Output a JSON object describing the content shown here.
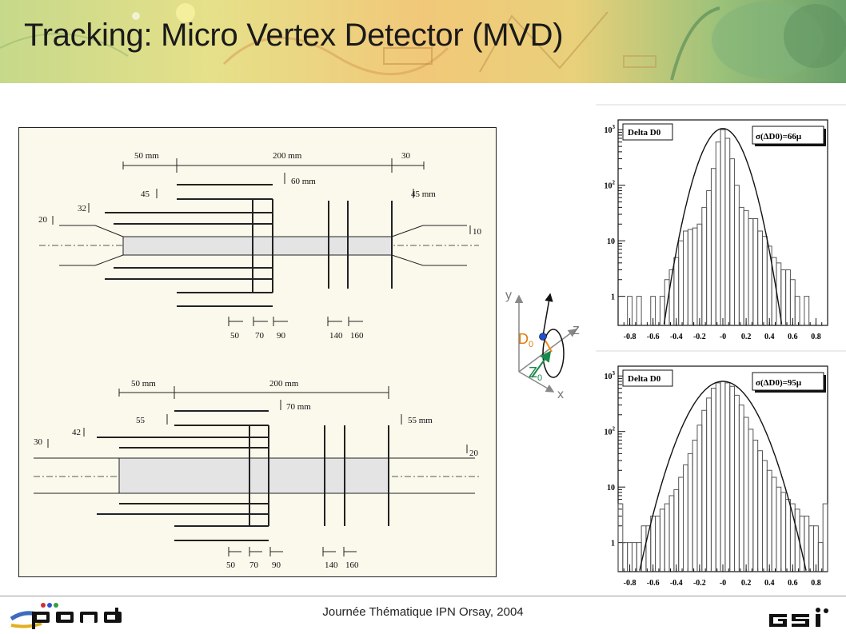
{
  "slide": {
    "title": "Tracking: Micro Vertex Detector (MVD)",
    "footer": "Journée Thématique IPN Orsay, 2004",
    "logo_left": "panda",
    "logo_right": "GSI"
  },
  "drawing_top": {
    "dims": [
      "50 mm",
      "200 mm",
      "30",
      "60 mm",
      "45",
      "45 mm",
      "32",
      "20",
      "10"
    ],
    "disk_labels": [
      "50",
      "70",
      "90",
      "140",
      "160"
    ]
  },
  "drawing_bottom": {
    "dims": [
      "50 mm",
      "200 mm",
      "70 mm",
      "55",
      "55 mm",
      "42",
      "30",
      "20"
    ],
    "disk_labels": [
      "50",
      "70",
      "90",
      "140",
      "160"
    ]
  },
  "coord": {
    "y": "y",
    "z": "z",
    "x": "x",
    "d0": "D",
    "d0_sub": "0",
    "z0": "Z",
    "z0_sub": "0"
  },
  "chart_data": [
    {
      "type": "bar",
      "title": "Delta D0",
      "annotation": "σ(ΔD0)=66μ",
      "y_scale": "log",
      "ylim": [
        0.3,
        1500
      ],
      "y_ticks": [
        "1",
        "10",
        "10²",
        "10³"
      ],
      "x_ticks": [
        "-0.8",
        "-0.6",
        "-0.4",
        "-0.2",
        "-0",
        "0.2",
        "0.4",
        "0.6",
        "0.8"
      ],
      "xlim": [
        -0.9,
        0.9
      ],
      "bin_width": 0.04,
      "x": [
        -0.88,
        -0.84,
        -0.8,
        -0.76,
        -0.72,
        -0.68,
        -0.64,
        -0.6,
        -0.56,
        -0.52,
        -0.48,
        -0.44,
        -0.4,
        -0.36,
        -0.32,
        -0.28,
        -0.24,
        -0.2,
        -0.16,
        -0.12,
        -0.08,
        -0.04,
        0.0,
        0.04,
        0.08,
        0.12,
        0.16,
        0.2,
        0.24,
        0.28,
        0.32,
        0.36,
        0.4,
        0.44,
        0.48,
        0.52,
        0.56,
        0.6,
        0.64,
        0.68,
        0.72,
        0.76,
        0.8,
        0.84,
        0.88
      ],
      "values": [
        0,
        0,
        1,
        0,
        1,
        0,
        0,
        1,
        0,
        1,
        2,
        3,
        5,
        10,
        15,
        16,
        17,
        20,
        40,
        80,
        200,
        600,
        1000,
        700,
        300,
        100,
        40,
        35,
        25,
        25,
        15,
        12,
        8,
        5,
        4,
        3,
        3,
        2,
        1,
        0,
        1,
        0,
        0,
        0,
        0
      ],
      "fit": {
        "type": "gaussian",
        "peak": 1050,
        "mean": 0.0,
        "sigma": 0.066
      }
    },
    {
      "type": "bar",
      "title": "Delta D0",
      "annotation": "σ(ΔD0)=95μ",
      "y_scale": "log",
      "ylim": [
        0.3,
        1500
      ],
      "y_ticks": [
        "1",
        "10",
        "10²",
        "10³"
      ],
      "x_ticks": [
        "-0.8",
        "-0.6",
        "-0.4",
        "-0.2",
        "-0",
        "0.2",
        "0.4",
        "0.6",
        "0.8"
      ],
      "xlim": [
        -0.9,
        0.9
      ],
      "bin_width": 0.04,
      "x": [
        -0.88,
        -0.84,
        -0.8,
        -0.76,
        -0.72,
        -0.68,
        -0.64,
        -0.6,
        -0.56,
        -0.52,
        -0.48,
        -0.44,
        -0.4,
        -0.36,
        -0.32,
        -0.28,
        -0.24,
        -0.2,
        -0.16,
        -0.12,
        -0.08,
        -0.04,
        0.0,
        0.04,
        0.08,
        0.12,
        0.16,
        0.2,
        0.24,
        0.28,
        0.32,
        0.36,
        0.4,
        0.44,
        0.48,
        0.52,
        0.56,
        0.6,
        0.64,
        0.68,
        0.72,
        0.76,
        0.8,
        0.84,
        0.88
      ],
      "values": [
        5,
        1,
        1,
        1,
        1,
        2,
        2,
        3,
        3,
        4,
        5,
        7,
        9,
        15,
        25,
        40,
        70,
        130,
        240,
        400,
        600,
        750,
        800,
        750,
        650,
        450,
        300,
        180,
        110,
        70,
        45,
        30,
        20,
        15,
        10,
        8,
        6,
        5,
        4,
        3,
        3,
        2,
        2,
        1,
        5
      ],
      "fit": {
        "type": "gaussian",
        "peak": 800,
        "mean": 0.0,
        "sigma": 0.095
      }
    }
  ]
}
